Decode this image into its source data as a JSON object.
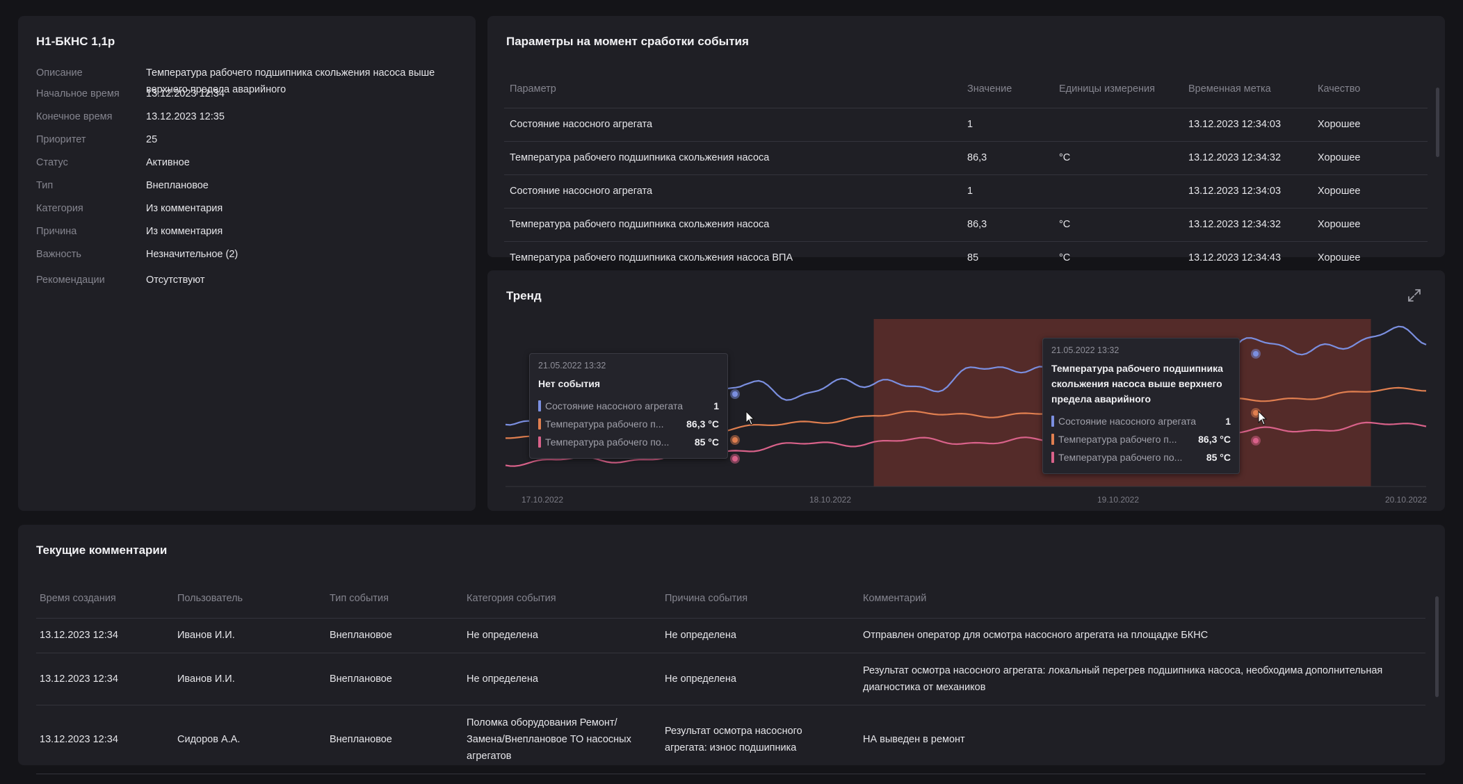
{
  "event": {
    "title": "Н1-БКНС 1,1р",
    "fields": [
      {
        "label": "Описание",
        "value": "Температура рабочего подшипника скольжения насоса выше верхнего предела аварийного"
      },
      {
        "label": "Начальное время",
        "value": "13.12.2023 12:34"
      },
      {
        "label": "Конечное время",
        "value": "13.12.2023 12:35"
      },
      {
        "label": "Приоритет",
        "value": "25"
      },
      {
        "label": "Статус",
        "value": "Активное"
      },
      {
        "label": "Тип",
        "value": "Внеплановое"
      },
      {
        "label": "Категория",
        "value": "Из комментария"
      },
      {
        "label": "Причина",
        "value": "Из комментария"
      },
      {
        "label": "Важность",
        "value": "Незначительное (2)"
      },
      {
        "label": "Рекомендации",
        "value": "Отсутствуют"
      }
    ]
  },
  "params": {
    "title": "Параметры на момент сработки события",
    "headers": [
      "Параметр",
      "Значение",
      "Единицы измерения",
      "Временная метка",
      "Качество"
    ],
    "rows": [
      [
        "Состояние насосного агрегата",
        "1",
        "",
        "13.12.2023 12:34:03",
        "Хорошее"
      ],
      [
        "Температура рабочего подшипника скольжения насоса",
        "86,3",
        "°С",
        "13.12.2023 12:34:32",
        "Хорошее"
      ],
      [
        "Состояние насосного агрегата",
        "1",
        "",
        "13.12.2023 12:34:03",
        "Хорошее"
      ],
      [
        "Температура рабочего подшипника скольжения насоса",
        "86,3",
        "°С",
        "13.12.2023 12:34:32",
        "Хорошее"
      ],
      [
        "Температура рабочего подшипника скольжения насоса ВПА",
        "85",
        "°С",
        "13.12.2023 12:34:43",
        "Хорошее"
      ]
    ]
  },
  "trend": {
    "title": "Тренд",
    "expand_icon": "expand-icon",
    "colors": {
      "series1": "#7b8fe0",
      "series2": "#e07f50",
      "series3": "#d9628a",
      "highlight": "#5e2e2a"
    },
    "tooltip1": {
      "date": "21.05.2022 13:32",
      "title": "Нет события",
      "rows": [
        {
          "name": "Состояние насосного агрегата",
          "value": "1"
        },
        {
          "name": "Температура рабочего п...",
          "value": "86,3 °C"
        },
        {
          "name": "Температура рабочего по...",
          "value": "85 °C"
        }
      ]
    },
    "tooltip2": {
      "date": "21.05.2022 13:32",
      "title": "Температура рабочего подшипника скольжения насоса выше верхнего предела аварийного",
      "rows": [
        {
          "name": "Состояние насосного агрегата",
          "value": "1"
        },
        {
          "name": "Температура рабочего п...",
          "value": "86,3 °C"
        },
        {
          "name": "Температура рабочего по...",
          "value": "85 °C"
        }
      ]
    },
    "x_ticks": [
      "17.10.2022",
      "18.10.2022",
      "19.10.2022",
      "20.10.2022"
    ],
    "highlight_range": [
      0.4,
      0.94
    ]
  },
  "comments": {
    "title": "Текущие комментарии",
    "headers": [
      "Время создания",
      "Пользователь",
      "Тип события",
      "Категория события",
      "Причина события",
      "Комментарий"
    ],
    "rows": [
      [
        "13.12.2023 12:34",
        "Иванов И.И.",
        "Внеплановое",
        "Не определена",
        "Не определена",
        "Отправлен оператор для осмотра насосного агрегата на площадке БКНС"
      ],
      [
        "13.12.2023 12:34",
        "Иванов И.И.",
        "Внеплановое",
        "Не определена",
        "Не определена",
        "Результат осмотра насосного агрегата: локальный перегрев подшипника насоса, необходима дополнительная диагностика от механиков"
      ],
      [
        "13.12.2023 12:34",
        "Сидоров А.А.",
        "Внеплановое",
        "Поломка оборудования Ремонт/ Замена/Внеплановое ТО насосных агрегатов",
        "Результат осмотра насосного агрегата: износ подшипника",
        "НА выведен в ремонт"
      ]
    ]
  }
}
